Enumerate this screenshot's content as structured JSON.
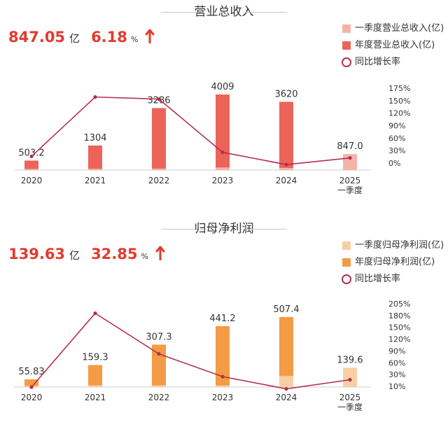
{
  "chart_data": [
    {
      "type": "bar",
      "title": "营业总收入",
      "kpi": {
        "value": "847.05",
        "unit": "亿",
        "growth": "6.18",
        "growth_unit": "%"
      },
      "categories": [
        "2020",
        "2021",
        "2022",
        "2023",
        "2024",
        "2025"
      ],
      "category_sublabels": [
        "",
        "",
        "",
        "",
        "",
        "一季度"
      ],
      "series": [
        {
          "name": "一季度营业总收入(亿)",
          "type": "bar",
          "color": "#f5b3a8",
          "values": [
            60,
            70,
            80,
            140,
            115,
            847.05
          ]
        },
        {
          "name": "年度营业总收入(亿)",
          "type": "bar",
          "color": "#ec6459",
          "values": [
            503.2,
            1304,
            3286,
            4009,
            3620,
            null
          ]
        },
        {
          "name": "同比增长率",
          "type": "line",
          "color": "#b5304d",
          "values": [
            10,
            155,
            150,
            20,
            -10,
            6.18
          ]
        }
      ],
      "data_labels": [
        "503.2",
        "1304",
        "3286",
        "4009",
        "3620",
        "847.0"
      ],
      "y2_ticks": [
        "175%",
        "150%",
        "120%",
        "90%",
        "60%",
        "30%",
        "0%"
      ],
      "y2lim": [
        -20,
        180
      ]
    },
    {
      "type": "bar",
      "title": "归母净利润",
      "kpi": {
        "value": "139.63",
        "unit": "亿",
        "growth": "32.85",
        "growth_unit": "%"
      },
      "categories": [
        "2020",
        "2021",
        "2022",
        "2023",
        "2024",
        "2025"
      ],
      "category_sublabels": [
        "",
        "",
        "",
        "",
        "",
        "一季度"
      ],
      "series": [
        {
          "name": "一季度归母净利润(亿)",
          "type": "bar",
          "color": "#f8cfa4",
          "values": [
            8,
            12,
            12,
            12,
            80,
            139.63
          ]
        },
        {
          "name": "年度归母净利润(亿)",
          "type": "bar",
          "color": "#f39c45",
          "values": [
            55.83,
            159.3,
            307.3,
            441.2,
            507.4,
            null
          ]
        },
        {
          "name": "同比增长率",
          "type": "line",
          "color": "#b5304d",
          "values": [
            16,
            185,
            92,
            40,
            12,
            32.85
          ]
        }
      ],
      "data_labels": [
        "55.83",
        "159.3",
        "307.3",
        "441.2",
        "507.4",
        "139.6"
      ],
      "y2_ticks": [
        "205%",
        "180%",
        "150%",
        "120%",
        "90%",
        "60%",
        "30%",
        "10%"
      ],
      "y2lim": [
        5,
        210
      ]
    }
  ]
}
